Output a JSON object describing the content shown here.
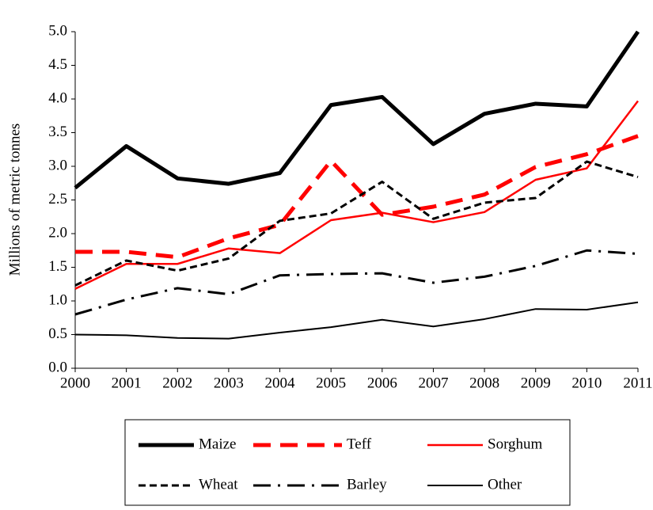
{
  "chart_data": {
    "type": "line",
    "y_label": "Millions of metric tonnes",
    "x": [
      2000,
      2001,
      2002,
      2003,
      2004,
      2005,
      2006,
      2007,
      2008,
      2009,
      2010,
      2011
    ],
    "xlim": [
      2000,
      2011
    ],
    "xticks": [
      2000,
      2001,
      2002,
      2003,
      2004,
      2005,
      2006,
      2007,
      2008,
      2009,
      2010,
      2011
    ],
    "ylim": [
      0,
      5
    ],
    "yticks": [
      {
        "value": 0,
        "label": "0.0"
      },
      {
        "value": 0.5,
        "label": "0.5"
      },
      {
        "value": 1,
        "label": "1.0"
      },
      {
        "value": 1.5,
        "label": "1.5"
      },
      {
        "value": 2,
        "label": "2.0"
      },
      {
        "value": 2.5,
        "label": "2.5"
      },
      {
        "value": 3,
        "label": "3.0"
      },
      {
        "value": 3.5,
        "label": "3.5"
      },
      {
        "value": 4,
        "label": "4.0"
      },
      {
        "value": 4.5,
        "label": "4.5"
      },
      {
        "value": 5,
        "label": "5.0"
      }
    ],
    "grid": false,
    "legend": "bottom",
    "series": [
      {
        "name": "Maize",
        "color": "#000000",
        "style": "thick-solid",
        "values": [
          2.68,
          3.3,
          2.82,
          2.74,
          2.9,
          3.91,
          4.03,
          3.33,
          3.78,
          3.93,
          3.89,
          5.0
        ]
      },
      {
        "name": "Teff",
        "color": "#ff0000",
        "style": "thick-dash",
        "values": [
          1.73,
          1.73,
          1.65,
          1.93,
          2.13,
          3.08,
          2.28,
          2.4,
          2.58,
          2.99,
          3.18,
          3.45
        ]
      },
      {
        "name": "Sorghum",
        "color": "#ff0000",
        "style": "solid",
        "values": [
          1.18,
          1.55,
          1.55,
          1.78,
          1.71,
          2.2,
          2.31,
          2.17,
          2.32,
          2.8,
          2.97,
          3.97
        ]
      },
      {
        "name": "Wheat",
        "color": "#000000",
        "style": "dash",
        "values": [
          1.23,
          1.6,
          1.45,
          1.63,
          2.19,
          2.3,
          2.77,
          2.22,
          2.46,
          2.53,
          3.07,
          2.84
        ]
      },
      {
        "name": "Barley",
        "color": "#000000",
        "style": "dash-dot",
        "values": [
          0.8,
          1.02,
          1.19,
          1.1,
          1.38,
          1.4,
          1.41,
          1.27,
          1.36,
          1.52,
          1.75,
          1.7
        ]
      },
      {
        "name": "Other",
        "color": "#000000",
        "style": "thin-solid",
        "values": [
          0.5,
          0.49,
          0.45,
          0.44,
          0.53,
          0.61,
          0.72,
          0.62,
          0.73,
          0.88,
          0.87,
          0.98
        ]
      }
    ]
  }
}
